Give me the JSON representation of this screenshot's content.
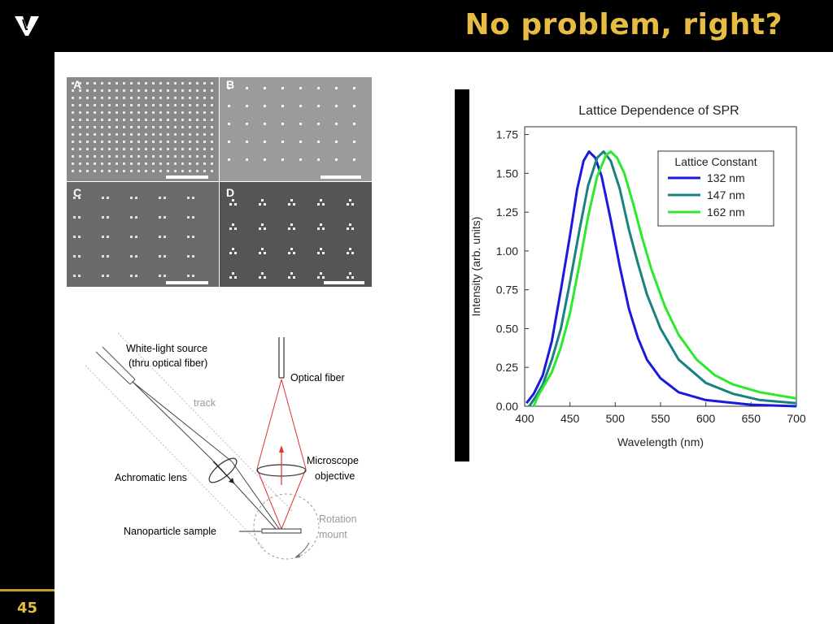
{
  "slide": {
    "title": "No problem, right?",
    "number": "45"
  },
  "logo": {
    "name": "vanderbilt-v-logo"
  },
  "micrographs": {
    "panels": [
      "A",
      "B",
      "C",
      "D"
    ]
  },
  "setup": {
    "light_source": [
      "White-light source",
      "(thru optical fiber)"
    ],
    "track": "track",
    "optical_fiber": "Optical fiber",
    "microscope_objective": [
      "Microscope",
      "objective"
    ],
    "achromatic_lens": "Achromatic lens",
    "nanoparticle_sample": "Nanoparticle sample",
    "rotation_mount": [
      "Rotation",
      "mount"
    ]
  },
  "colors": {
    "accent_gold": "#e7bc45",
    "series_132": "#1a1adb",
    "series_147": "#1a8080",
    "series_162": "#2ee82e"
  },
  "chart_data": {
    "type": "line",
    "title": "Lattice Dependence of SPR",
    "xlabel": "Wavelength (nm)",
    "ylabel": "Intensity (arb. units)",
    "xlim": [
      400,
      700
    ],
    "ylim": [
      0,
      1.8
    ],
    "xticks": [
      400,
      450,
      500,
      550,
      600,
      650,
      700
    ],
    "yticks": [
      0.0,
      0.25,
      0.5,
      0.75,
      1.0,
      1.25,
      1.5,
      1.75
    ],
    "ytick_labels": [
      "0.00",
      "0.25",
      "0.50",
      "0.75",
      "1.00",
      "1.25",
      "1.50",
      "1.75"
    ],
    "legend_title": "Lattice Constant",
    "legend_position": "top-right",
    "grid": false,
    "series": [
      {
        "name": "132 nm",
        "color": "#1a1adb",
        "points": [
          [
            402,
            0.02
          ],
          [
            410,
            0.08
          ],
          [
            420,
            0.2
          ],
          [
            430,
            0.42
          ],
          [
            440,
            0.75
          ],
          [
            450,
            1.1
          ],
          [
            458,
            1.4
          ],
          [
            465,
            1.58
          ],
          [
            471,
            1.64
          ],
          [
            478,
            1.6
          ],
          [
            485,
            1.48
          ],
          [
            495,
            1.2
          ],
          [
            505,
            0.9
          ],
          [
            515,
            0.63
          ],
          [
            525,
            0.44
          ],
          [
            535,
            0.3
          ],
          [
            550,
            0.18
          ],
          [
            570,
            0.09
          ],
          [
            600,
            0.04
          ],
          [
            650,
            0.01
          ],
          [
            700,
            0.0
          ]
        ]
      },
      {
        "name": "147 nm",
        "color": "#1a8080",
        "points": [
          [
            405,
            0.0
          ],
          [
            412,
            0.06
          ],
          [
            420,
            0.14
          ],
          [
            430,
            0.3
          ],
          [
            440,
            0.5
          ],
          [
            450,
            0.8
          ],
          [
            460,
            1.12
          ],
          [
            470,
            1.42
          ],
          [
            480,
            1.6
          ],
          [
            487,
            1.64
          ],
          [
            495,
            1.58
          ],
          [
            505,
            1.4
          ],
          [
            515,
            1.14
          ],
          [
            525,
            0.92
          ],
          [
            535,
            0.72
          ],
          [
            550,
            0.5
          ],
          [
            570,
            0.3
          ],
          [
            600,
            0.15
          ],
          [
            630,
            0.08
          ],
          [
            660,
            0.04
          ],
          [
            700,
            0.02
          ]
        ]
      },
      {
        "name": "162 nm",
        "color": "#2ee82e",
        "points": [
          [
            410,
            0.0
          ],
          [
            415,
            0.07
          ],
          [
            420,
            0.12
          ],
          [
            430,
            0.22
          ],
          [
            440,
            0.38
          ],
          [
            450,
            0.6
          ],
          [
            460,
            0.9
          ],
          [
            470,
            1.22
          ],
          [
            480,
            1.48
          ],
          [
            490,
            1.62
          ],
          [
            495,
            1.64
          ],
          [
            502,
            1.6
          ],
          [
            510,
            1.5
          ],
          [
            520,
            1.3
          ],
          [
            530,
            1.08
          ],
          [
            540,
            0.88
          ],
          [
            555,
            0.64
          ],
          [
            570,
            0.46
          ],
          [
            590,
            0.3
          ],
          [
            610,
            0.2
          ],
          [
            630,
            0.14
          ],
          [
            660,
            0.09
          ],
          [
            700,
            0.05
          ]
        ]
      }
    ]
  }
}
